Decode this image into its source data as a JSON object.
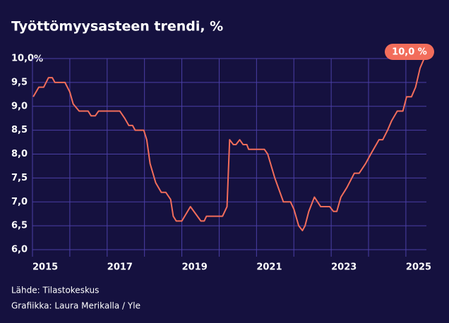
{
  "chart_data": {
    "type": "line",
    "title": "Työttömyysasteen trendi, %",
    "y_unit": "%",
    "annotation": "10,0 %",
    "source": "Lähde: Tilastokeskus",
    "credit": "Grafiikka: Laura Merikalla / Yle",
    "xlim": [
      2015,
      2025.55
    ],
    "xticks": [
      2015,
      2017,
      2019,
      2021,
      2023,
      2025
    ],
    "xminorticks": [
      2016,
      2018,
      2020,
      2022,
      2024
    ],
    "ylim": [
      6,
      10
    ],
    "yticks": [
      {
        "value": 6,
        "label": "6,0"
      },
      {
        "value": 6.5,
        "label": "6,5"
      },
      {
        "value": 7,
        "label": "7,0"
      },
      {
        "value": 7.5,
        "label": "7,5"
      },
      {
        "value": 8,
        "label": "8,0"
      },
      {
        "value": 8.5,
        "label": "8,5"
      },
      {
        "value": 9,
        "label": "9,0"
      },
      {
        "value": 9.5,
        "label": "9,5"
      },
      {
        "value": 10,
        "label": "10,0"
      }
    ],
    "grid": true,
    "series": [
      {
        "color": "#f26d5b",
        "x": [
          2015.02,
          2015.17,
          2015.3,
          2015.43,
          2015.53,
          2015.6,
          2015.87,
          2016.0,
          2016.09,
          2016.25,
          2016.49,
          2016.57,
          2016.68,
          2016.77,
          2017.34,
          2017.47,
          2017.58,
          2017.68,
          2017.75,
          2017.98,
          2018.06,
          2018.15,
          2018.3,
          2018.45,
          2018.57,
          2018.7,
          2018.77,
          2018.85,
          2019.0,
          2019.23,
          2019.51,
          2019.6,
          2019.66,
          2020.09,
          2020.21,
          2020.28,
          2020.38,
          2020.45,
          2020.55,
          2020.64,
          2020.74,
          2020.79,
          2021.21,
          2021.3,
          2021.49,
          2021.72,
          2021.91,
          2022.0,
          2022.13,
          2022.23,
          2022.3,
          2022.4,
          2022.55,
          2022.72,
          2022.96,
          2023.06,
          2023.15,
          2023.26,
          2023.42,
          2023.62,
          2023.75,
          2023.92,
          2024.06,
          2024.28,
          2024.38,
          2024.51,
          2024.62,
          2024.77,
          2024.92,
          2025.02,
          2025.15,
          2025.26,
          2025.38,
          2025.49
        ],
        "values": [
          9.2,
          9.4,
          9.4,
          9.6,
          9.6,
          9.5,
          9.5,
          9.3,
          9.05,
          8.9,
          8.9,
          8.8,
          8.8,
          8.9,
          8.9,
          8.75,
          8.6,
          8.6,
          8.5,
          8.5,
          8.3,
          7.8,
          7.4,
          7.2,
          7.2,
          7.05,
          6.7,
          6.6,
          6.6,
          6.9,
          6.6,
          6.6,
          6.7,
          6.7,
          6.9,
          8.3,
          8.2,
          8.2,
          8.3,
          8.2,
          8.2,
          8.1,
          8.1,
          8.0,
          7.5,
          7.0,
          7.0,
          6.85,
          6.5,
          6.4,
          6.5,
          6.8,
          7.1,
          6.9,
          6.9,
          6.8,
          6.8,
          7.1,
          7.3,
          7.6,
          7.6,
          7.8,
          8.0,
          8.3,
          8.3,
          8.5,
          8.7,
          8.9,
          8.9,
          9.2,
          9.2,
          9.4,
          9.8,
          10.0
        ]
      }
    ]
  }
}
